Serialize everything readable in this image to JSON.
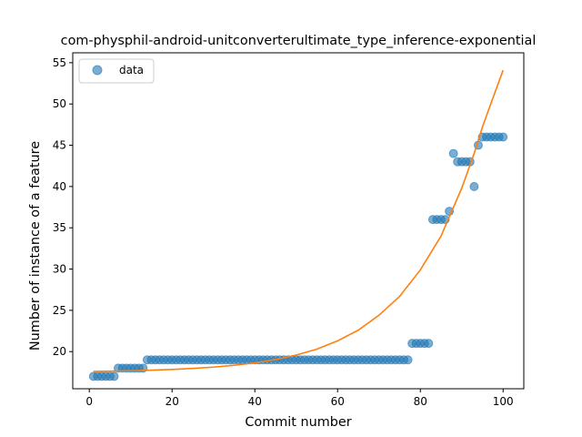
{
  "chart_data": {
    "type": "scatter",
    "title": "com-physphil-android-unitconverterultimate_type_inference-exponential",
    "xlabel": "Commit number",
    "ylabel": "Number of instance of a feature",
    "xlim": [
      -4,
      105
    ],
    "ylim": [
      15.5,
      56.2
    ],
    "xticks": [
      0,
      20,
      40,
      60,
      80,
      100
    ],
    "yticks": [
      20,
      25,
      30,
      35,
      40,
      45,
      50,
      55
    ],
    "legend": {
      "position": "top-left",
      "entries": [
        "data"
      ]
    },
    "grid": false,
    "colors": {
      "data": "#1f77b4",
      "fit": "#ff7f0e"
    },
    "series": [
      {
        "name": "data",
        "kind": "scatter",
        "x": [
          1,
          2,
          3,
          4,
          5,
          6,
          7,
          8,
          9,
          10,
          11,
          12,
          13,
          14,
          15,
          16,
          17,
          18,
          19,
          20,
          21,
          22,
          23,
          24,
          25,
          26,
          27,
          28,
          29,
          30,
          31,
          32,
          33,
          34,
          35,
          36,
          37,
          38,
          39,
          40,
          41,
          42,
          43,
          44,
          45,
          46,
          47,
          48,
          49,
          50,
          51,
          52,
          53,
          54,
          55,
          56,
          57,
          58,
          59,
          60,
          61,
          62,
          63,
          64,
          65,
          66,
          67,
          68,
          69,
          70,
          71,
          72,
          73,
          74,
          75,
          76,
          77,
          78,
          79,
          80,
          81,
          82,
          83,
          84,
          85,
          86,
          87,
          88,
          89,
          90,
          91,
          92,
          93,
          94,
          95,
          96,
          97,
          98,
          99,
          100
        ],
        "y": [
          17,
          17,
          17,
          17,
          17,
          17,
          18,
          18,
          18,
          18,
          18,
          18,
          18,
          19,
          19,
          19,
          19,
          19,
          19,
          19,
          19,
          19,
          19,
          19,
          19,
          19,
          19,
          19,
          19,
          19,
          19,
          19,
          19,
          19,
          19,
          19,
          19,
          19,
          19,
          19,
          19,
          19,
          19,
          19,
          19,
          19,
          19,
          19,
          19,
          19,
          19,
          19,
          19,
          19,
          19,
          19,
          19,
          19,
          19,
          19,
          19,
          19,
          19,
          19,
          19,
          19,
          19,
          19,
          19,
          19,
          19,
          19,
          19,
          19,
          19,
          19,
          19,
          21,
          21,
          21,
          21,
          21,
          36,
          36,
          36,
          36,
          37,
          44,
          43,
          43,
          43,
          43,
          40,
          45,
          46,
          46,
          46,
          46,
          46,
          46
        ]
      },
      {
        "kind": "line",
        "x": [
          1,
          5,
          10,
          15,
          20,
          25,
          30,
          35,
          40,
          45,
          50,
          55,
          60,
          65,
          70,
          75,
          80,
          85,
          90,
          93,
          95,
          97,
          100
        ],
        "y": [
          17.6,
          17.63,
          17.68,
          17.75,
          17.84,
          17.96,
          18.12,
          18.34,
          18.63,
          19.04,
          19.58,
          20.3,
          21.3,
          22.6,
          24.4,
          26.7,
          29.9,
          34.0,
          39.8,
          44.0,
          47.2,
          50.0,
          54.1
        ]
      }
    ]
  }
}
